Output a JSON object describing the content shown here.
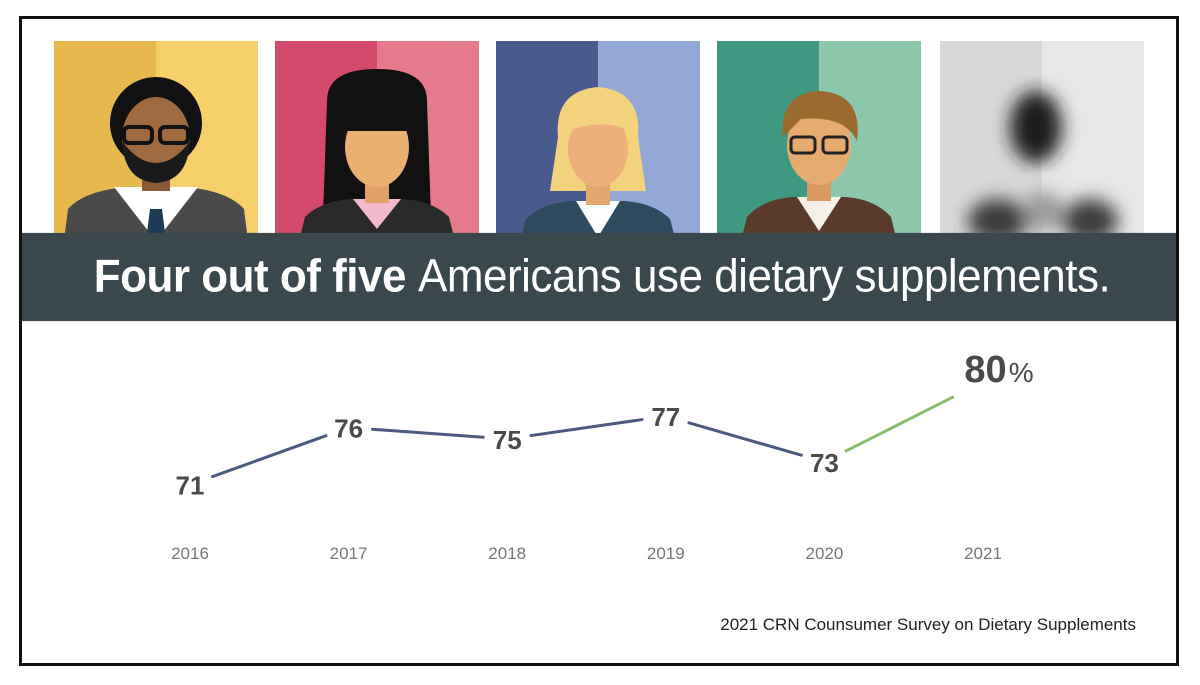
{
  "headline": {
    "bold": "Four out of five",
    "rest": "Americans use dietary supplements."
  },
  "source": "2021 CRN Counsumer Survey on Dietary Supplements",
  "colors": {
    "banner": "#3a474d",
    "line": "#4c5a80",
    "line_latest": "#8fba6a",
    "value_text": "#4a4a4a",
    "tick_text": "#777777"
  },
  "portraits": [
    {
      "name": "man-glasses-beard",
      "bg_left": "#e7b84d",
      "bg_right": "#f5cf6a"
    },
    {
      "name": "woman-black-hair",
      "bg_left": "#d34a6c",
      "bg_right": "#e57a8d"
    },
    {
      "name": "woman-blonde",
      "bg_left": "#4a5a8d",
      "bg_right": "#93a8d6"
    },
    {
      "name": "man-glasses",
      "bg_left": "#3f9982",
      "bg_right": "#8cc7ac"
    },
    {
      "name": "blurred-person",
      "bg_left": "#d8d8d8",
      "bg_right": "#e8e8e8"
    }
  ],
  "chart_data": {
    "type": "line",
    "categories": [
      "2016",
      "2017",
      "2018",
      "2019",
      "2020",
      "2021"
    ],
    "values": [
      71,
      76,
      75,
      77,
      73,
      80
    ],
    "value_labels": [
      "71",
      "76",
      "75",
      "77",
      "73",
      "80"
    ],
    "highlight_suffix": "%",
    "ylim": [
      68,
      82
    ],
    "title": "",
    "xlabel": "",
    "ylabel": ""
  }
}
